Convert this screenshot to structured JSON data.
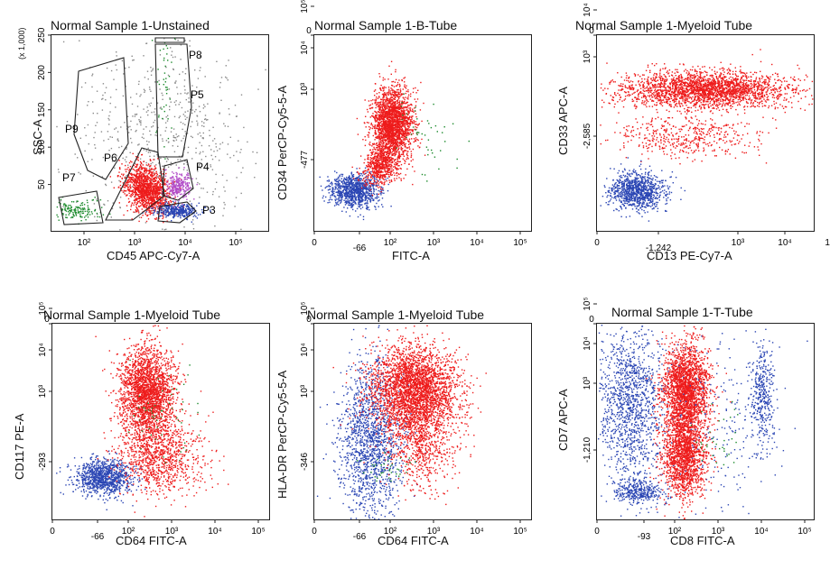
{
  "colors": {
    "red": "#ee1c1c",
    "blue": "#2b46b4",
    "green": "#1c8a2c",
    "purple": "#b24dc9",
    "gray": "#8a8a8a"
  },
  "chart_data": [
    {
      "type": "scatter",
      "title": "Normal Sample 1-Unstained",
      "xlabel": "CD45 APC-Cy7-A",
      "ylabel": "SSC-A",
      "y_multiplier": "(x 1,000)",
      "x_scale": "biexponential",
      "y_scale": "linear",
      "xticks": [
        "10^2",
        "10^3",
        "10^4",
        "10^5"
      ],
      "yticks": [
        "50",
        "100",
        "150",
        "200",
        "250"
      ],
      "gates": [
        "P3",
        "P4",
        "P5",
        "P6",
        "P7",
        "P8",
        "P9"
      ],
      "populations": [
        {
          "color": "red",
          "x_center": 1900,
          "y_center": 50
        },
        {
          "color": "blue",
          "x_center": 8000,
          "y_center": 30
        },
        {
          "color": "purple",
          "x_center": 7000,
          "y_center": 60
        },
        {
          "color": "green",
          "x_center": 80,
          "y_center": 25
        }
      ]
    },
    {
      "type": "scatter",
      "title": "Normal Sample 1-B-Tube",
      "xlabel": "FITC-A",
      "ylabel": "CD34 PerCP-Cy5-5-A",
      "x_scale": "biexponential",
      "y_scale": "biexponential",
      "xticks": [
        "-66",
        "0",
        "10^2",
        "10^3",
        "10^4",
        "10^5"
      ],
      "yticks": [
        "-477",
        "0",
        "10^3",
        "10^4",
        "10^5"
      ],
      "populations": [
        {
          "color": "blue",
          "x_center": 60,
          "y_center": 150
        },
        {
          "color": "red",
          "x_center": 400,
          "y_center": 6000
        }
      ]
    },
    {
      "type": "scatter",
      "title": "Normal Sample 1-Myeloid Tube",
      "xlabel": "CD13 PE-Cy7-A",
      "ylabel": "CD33 APC-A",
      "x_scale": "biexponential",
      "y_scale": "biexponential",
      "xticks": [
        "-1,242",
        "0",
        "10^3",
        "10^4",
        "10^5"
      ],
      "yticks": [
        "-2,585",
        "0",
        "10^3",
        "10^4",
        "10^5"
      ],
      "populations": [
        {
          "color": "blue",
          "x_center": 400,
          "y_center": -300
        },
        {
          "color": "red",
          "x_center": 5000,
          "y_center": 15000
        }
      ]
    },
    {
      "type": "scatter",
      "title": "Normal Sample 1-Myeloid Tube",
      "xlabel": "CD64 FITC-A",
      "ylabel": "CD117 PE-A",
      "x_scale": "biexponential",
      "y_scale": "biexponential",
      "xticks": [
        "-66",
        "0",
        "10^2",
        "10^3",
        "10^4",
        "10^5"
      ],
      "yticks": [
        "-293",
        "0",
        "10^3",
        "10^4",
        "10^5"
      ],
      "populations": [
        {
          "color": "blue",
          "x_center": 150,
          "y_center": 50
        },
        {
          "color": "red",
          "x_center": 800,
          "y_center": 3000
        }
      ]
    },
    {
      "type": "scatter",
      "title": "Normal Sample 1-Myeloid Tube",
      "xlabel": "CD64 FITC-A",
      "ylabel": "HLA-DR PerCP-Cy5-5-A",
      "x_scale": "biexponential",
      "y_scale": "biexponential",
      "xticks": [
        "-66",
        "0",
        "10^2",
        "10^3",
        "10^4",
        "10^5"
      ],
      "yticks": [
        "-346",
        "0",
        "10^3",
        "10^4",
        "10^5"
      ],
      "populations": [
        {
          "color": "blue",
          "x_center": 200,
          "y_center": 1000
        },
        {
          "color": "red",
          "x_center": 900,
          "y_center": 8000
        }
      ]
    },
    {
      "type": "scatter",
      "title": "Normal Sample 1-T-Tube",
      "xlabel": "CD8 FITC-A",
      "ylabel": "CD7 APC-A",
      "x_scale": "biexponential",
      "y_scale": "biexponential",
      "xticks": [
        "-93",
        "0",
        "10^2",
        "10^3",
        "10^4",
        "10^5"
      ],
      "yticks": [
        "-1,210",
        "0",
        "10^3",
        "10^4",
        "10^5"
      ],
      "populations": [
        {
          "color": "blue",
          "x_center": 50,
          "y_center": 3000
        },
        {
          "color": "red",
          "x_center": 400,
          "y_center": 1500
        },
        {
          "color": "blue",
          "x_center": 20000,
          "y_center": 3000
        }
      ]
    }
  ]
}
